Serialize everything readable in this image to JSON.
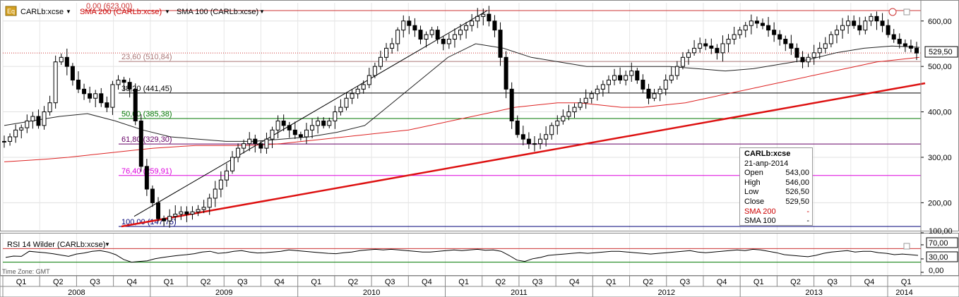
{
  "toolbar": {
    "eq_icon_label": "Eq",
    "main_series": "CARLb:xcse",
    "sma200_label": "SMA 200 (CARLb:xcse)",
    "sma100_label": "SMA 100 (CARLb:xcse)"
  },
  "rsi_panel": {
    "label": "RSI 14 Wilder (CARLb:xcse)",
    "timezone": "Time Zone: GMT",
    "levels": [
      70,
      30
    ],
    "level_labels": [
      "70,00",
      "30,00"
    ],
    "y_tick_labels": [
      "100,00",
      "0,00"
    ],
    "values": [
      44,
      48,
      47,
      62,
      60,
      58,
      55,
      51,
      47,
      54,
      57,
      62,
      64,
      60,
      52,
      38,
      30,
      32,
      34,
      40,
      44,
      47,
      50,
      52,
      55,
      60,
      62,
      56,
      58,
      62,
      64,
      60,
      57,
      58,
      60,
      62,
      66,
      64,
      62,
      60,
      58,
      56,
      55,
      58,
      60,
      64,
      66,
      68,
      66,
      68,
      66,
      64,
      62,
      60,
      60,
      62,
      64,
      66,
      64,
      66,
      68,
      65,
      66,
      62,
      50,
      36,
      32,
      40,
      44,
      50,
      52,
      54,
      56,
      58,
      56,
      58,
      60,
      62,
      62,
      60,
      58,
      56,
      54,
      56,
      58,
      60,
      62,
      64,
      60,
      58,
      60,
      62,
      64,
      66,
      64,
      68,
      66,
      62,
      58,
      52,
      50,
      48,
      46,
      50,
      56,
      60,
      62,
      64,
      60,
      62,
      62,
      58,
      56,
      52,
      54,
      52,
      50
    ]
  },
  "info_box": {
    "title": "CARLb:xcse",
    "date": "21-апр-2014",
    "rows": [
      {
        "label": "Open",
        "value": "543,00"
      },
      {
        "label": "High",
        "value": "546,00"
      },
      {
        "label": "Low",
        "value": "526,50"
      },
      {
        "label": "Close",
        "value": "529,50"
      },
      {
        "label": "SMA 200",
        "value": "-"
      },
      {
        "label": "SMA 100",
        "value": "-"
      }
    ]
  },
  "last_price_label": "529,50",
  "colors": {
    "price": "#000000",
    "sma200": "#dd2222",
    "sma100": "#222222",
    "trendline": "#dd1111",
    "fib_0": "#cc3333",
    "fib_236": "#aa7777",
    "fib_382": "#000000",
    "fib_50": "#007700",
    "fib_618": "#660066",
    "fib_764": "#dd00dd",
    "fib_100": "#000077",
    "rsi": "#000000",
    "rsi_70": "#cc3333",
    "rsi_30": "#007700"
  },
  "chart_data": {
    "type": "line",
    "series_type": "candlestick",
    "ylim": [
      140,
      640
    ],
    "y_ticks": [
      200,
      300,
      400,
      500,
      600
    ],
    "y_tick_labels": [
      "200,00",
      "300,00",
      "400,00",
      "500,00",
      "600,00"
    ],
    "x_quarters": [
      "Q1",
      "Q2",
      "Q3",
      "Q4",
      "Q1",
      "Q2",
      "Q3",
      "Q4",
      "Q1",
      "Q2",
      "Q3",
      "Q4",
      "Q1",
      "Q2",
      "Q3",
      "Q4",
      "Q1",
      "Q2",
      "Q3",
      "Q4",
      "Q1",
      "Q2",
      "Q3",
      "Q4",
      "Q1"
    ],
    "x_years": [
      "2008",
      "2009",
      "2010",
      "2011",
      "2012",
      "2013",
      "2014"
    ],
    "fibonacci": [
      {
        "label": "0,00 (623,00)",
        "value": 623.0
      },
      {
        "label": "23,60 (510,84)",
        "value": 510.84
      },
      {
        "label": "38,20 (441,45)",
        "value": 441.45
      },
      {
        "label": "50,00 (385,38)",
        "value": 385.38
      },
      {
        "label": "61,80 (329,30)",
        "value": 329.3
      },
      {
        "label": "76,40 (259,91)",
        "value": 259.91
      },
      {
        "label": "100,00 (147,75)",
        "value": 147.75
      }
    ],
    "close_weekly": [
      335,
      345,
      360,
      365,
      380,
      390,
      370,
      400,
      420,
      510,
      520,
      500,
      470,
      450,
      440,
      430,
      440,
      420,
      410,
      460,
      470,
      465,
      450,
      380,
      280,
      230,
      200,
      165,
      160,
      170,
      175,
      180,
      175,
      180,
      185,
      190,
      210,
      230,
      250,
      270,
      300,
      320,
      330,
      340,
      330,
      320,
      340,
      360,
      380,
      370,
      360,
      350,
      345,
      360,
      370,
      380,
      370,
      380,
      400,
      410,
      430,
      440,
      450,
      460,
      480,
      500,
      520,
      540,
      550,
      580,
      600,
      590,
      580,
      560,
      570,
      580,
      560,
      550,
      560,
      570,
      580,
      590,
      600,
      610,
      615,
      600,
      580,
      520,
      450,
      380,
      350,
      340,
      330,
      330,
      340,
      350,
      370,
      380,
      390,
      400,
      410,
      420,
      430,
      440,
      450,
      460,
      470,
      480,
      470,
      480,
      490,
      470,
      450,
      430,
      440,
      450,
      470,
      480,
      500,
      520,
      530,
      540,
      550,
      545,
      540,
      530,
      550,
      560,
      570,
      580,
      590,
      600,
      595,
      590,
      580,
      570,
      560,
      550,
      540,
      520,
      510,
      520,
      530,
      540,
      550,
      570,
      580,
      590,
      600,
      590,
      580,
      600,
      610,
      600,
      590,
      570,
      560,
      550,
      545,
      540,
      529.5
    ],
    "sma200": [
      290,
      293,
      296,
      300,
      305,
      310,
      315,
      320,
      323,
      326,
      326,
      326,
      327,
      330,
      335,
      340,
      345,
      350,
      355,
      360,
      370,
      380,
      390,
      400,
      410,
      415,
      420,
      420,
      415,
      410,
      410,
      415,
      420,
      430,
      440,
      450,
      460,
      470,
      480,
      490,
      500,
      510,
      515,
      520
    ],
    "sma100": [
      370,
      380,
      390,
      396,
      380,
      360,
      345,
      340,
      335,
      335,
      340,
      345,
      355,
      370,
      420,
      470,
      520,
      550,
      540,
      520,
      510,
      500,
      500,
      500,
      500,
      495,
      490,
      495,
      505,
      515,
      530,
      540,
      545,
      542
    ]
  }
}
